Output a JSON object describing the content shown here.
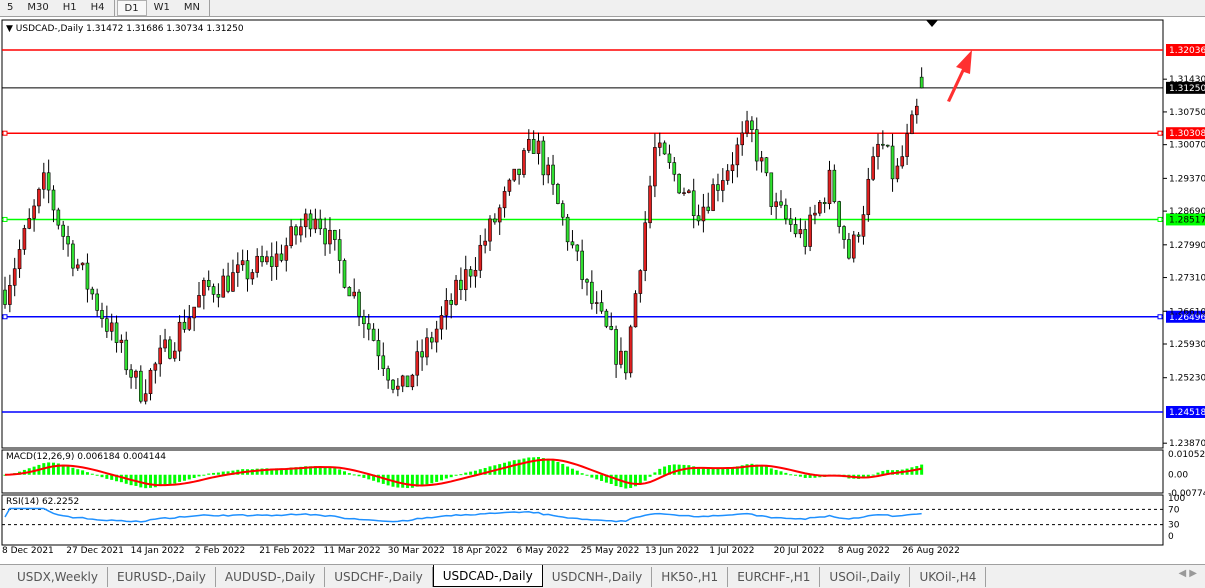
{
  "toolbar": {
    "timeframes": [
      "5",
      "M30",
      "H1",
      "H4",
      "D1",
      "W1",
      "MN"
    ],
    "active": "D1"
  },
  "chart": {
    "symbol_info": "USDCAD-,Daily  1.31472 1.31686 1.30734 1.31250",
    "price_ticks": [
      "1.31430",
      "1.30750",
      "1.30070",
      "1.29370",
      "1.28690",
      "1.27990",
      "1.27310",
      "1.26610",
      "1.25930",
      "1.25230",
      "1.23870"
    ],
    "current_price": "1.31250",
    "hlines": [
      {
        "price": "1.32036",
        "color": "#ff0000"
      },
      {
        "price": "1.30308",
        "color": "#ff0000"
      },
      {
        "price": "1.28517",
        "color": "#00ff00"
      },
      {
        "price": "1.26496",
        "color": "#0000ff"
      },
      {
        "price": "1.24518",
        "color": "#0000ff"
      }
    ],
    "colors": {
      "bull_body": "#e02020",
      "bear_body": "#30e030",
      "macd_hist": "#00ff00",
      "macd_signal": "#ff0000",
      "rsi": "#1e90ff",
      "arrow": "#ff3030"
    }
  },
  "chart_data": {
    "type": "candlestick",
    "anchors": [
      [
        "8 Dec 2021",
        1.2705
      ],
      [
        "17 Dec 2021",
        1.293
      ],
      [
        "27 Dec 2021",
        1.281
      ],
      [
        "14 Jan 2022",
        1.2497
      ],
      [
        "2 Feb 2022",
        1.2705
      ],
      [
        "21 Feb 2022",
        1.2768
      ],
      [
        "8 Mar 2022",
        1.2872
      ],
      [
        "30 Mar 2022",
        1.2487
      ],
      [
        "18 Apr 2022",
        1.2768
      ],
      [
        "10 May 2022",
        1.3017
      ],
      [
        "25 May 2022",
        1.2685
      ],
      [
        "3 Jun 2022",
        1.2539
      ],
      [
        "13 Jun 2022",
        1.2996
      ],
      [
        "24 Jun 2022",
        1.2872
      ],
      [
        "14 Jul 2022",
        1.3038
      ],
      [
        "20 Jul 2022",
        1.2872
      ],
      [
        "1 Aug 2022",
        1.2809
      ],
      [
        "5 Aug 2022",
        1.2934
      ],
      [
        "12 Aug 2022",
        1.2768
      ],
      [
        "22 Aug 2022",
        1.3017
      ],
      [
        "26 Aug 2022",
        1.2934
      ],
      [
        "31 Aug 2022",
        1.3125
      ]
    ]
  },
  "macd": {
    "label": "MACD(12,26,9) 0.006184 0.004144",
    "ticks": [
      "0.01052",
      "0.00",
      "-0.00774"
    ],
    "range": [
      -0.00774,
      0.01052
    ]
  },
  "rsi": {
    "label": "RSI(14) 62.2252",
    "ticks": [
      "100",
      "70",
      "30",
      "0"
    ]
  },
  "xaxis": [
    "8 Dec 2021",
    "27 Dec 2021",
    "14 Jan 2022",
    "2 Feb 2022",
    "21 Feb 2022",
    "11 Mar 2022",
    "30 Mar 2022",
    "18 Apr 2022",
    "6 May 2022",
    "25 May 2022",
    "13 Jun 2022",
    "1 Jul 2022",
    "20 Jul 2022",
    "8 Aug 2022",
    "26 Aug 2022"
  ],
  "tabs": [
    "USDX,Weekly",
    "EURUSD-,Daily",
    "AUDUSD-,Daily",
    "USDCHF-,Daily",
    "USDCAD-,Daily",
    "USDCNH-,Daily",
    "HK50-,H1",
    "EURCHF-,H1",
    "USOil-,Daily",
    "UKOil-,H4"
  ],
  "active_tab": "USDCAD-,Daily"
}
